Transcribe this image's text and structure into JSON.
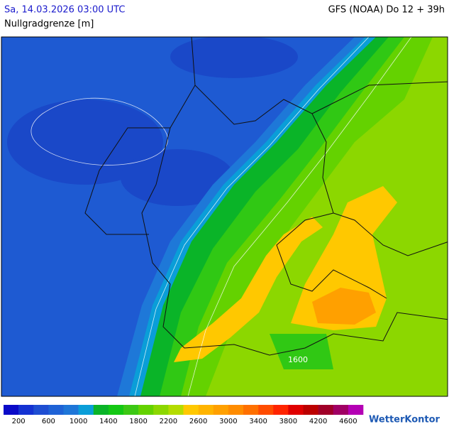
{
  "header": {
    "datetime": "Sa, 14.03.2026 03:00 UTC",
    "model": "GFS (NOAA) Do 12 + 39h",
    "title": "Nullgradgrenze [m]"
  },
  "map": {
    "contour_label": "1600"
  },
  "legend": {
    "colors": [
      "#0a0ac8",
      "#1432d2",
      "#1e4ed2",
      "#1e62d6",
      "#1e76d8",
      "#0a9ed8",
      "#0ab428",
      "#14c814",
      "#3cc814",
      "#64d200",
      "#8cd700",
      "#b4dc00",
      "#ffc800",
      "#ffb400",
      "#ffa000",
      "#ff8c00",
      "#ff7000",
      "#ff4c00",
      "#ff2400",
      "#e00000",
      "#bc0000",
      "#a00028",
      "#a00064",
      "#b400b4"
    ],
    "labels": [
      200,
      600,
      1000,
      1400,
      1800,
      2200,
      2600,
      3000,
      3400,
      3800,
      4200,
      4600
    ]
  },
  "brand": "WetterKontor"
}
